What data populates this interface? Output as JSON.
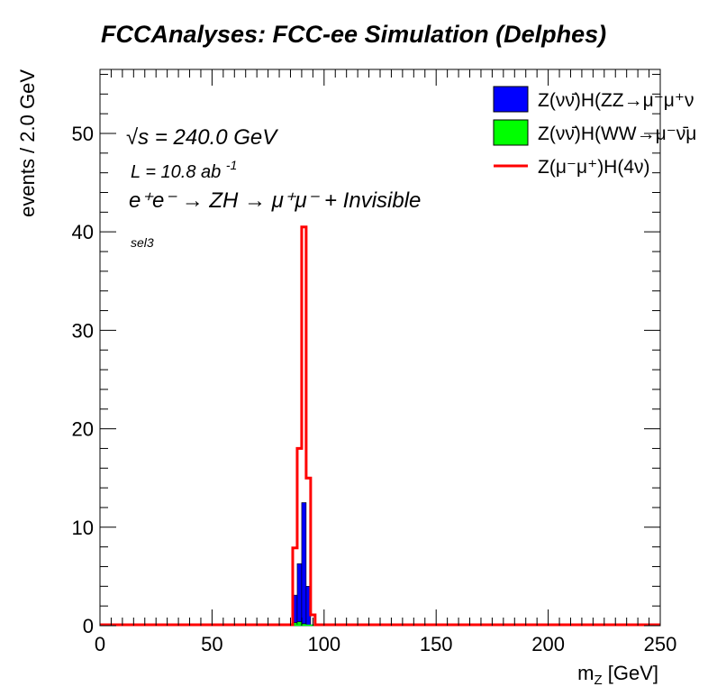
{
  "chart_data": {
    "type": "histogram",
    "title": "FCCAnalyses: FCC-ee Simulation (Delphes)",
    "xlabel": "m_Z [GeV]",
    "ylabel": "events / 2.0 GeV",
    "xlim": [
      0,
      250
    ],
    "ylim": [
      0,
      56.5
    ],
    "bin_width": 2.0,
    "x_ticks": [
      0,
      50,
      100,
      150,
      200,
      250
    ],
    "y_ticks": [
      0,
      10,
      20,
      30,
      40,
      50
    ],
    "annotations": {
      "energy": "√s = 240.0 GeV",
      "lumi": "L = 10.8 ab",
      "lumi_exp": "-1",
      "process": "e⁺e⁻ → ZH → μ⁺μ⁻ + Invisible",
      "selection": "sel3"
    },
    "series": [
      {
        "name": "Z(νν̄)H(ZZ→μ⁻μ⁺ν",
        "style": "filled",
        "color": "#0000ff",
        "bins": [
          {
            "x0": 86,
            "x1": 88,
            "y": 3.1
          },
          {
            "x0": 88,
            "x1": 90,
            "y": 6.3
          },
          {
            "x0": 90,
            "x1": 92,
            "y": 12.5
          },
          {
            "x0": 92,
            "x1": 94,
            "y": 4.0
          }
        ]
      },
      {
        "name": "Z(νν̄)H(WW→μ⁻ν̄μ",
        "style": "filled",
        "color": "#00ff00",
        "bins": [
          {
            "x0": 86,
            "x1": 88,
            "y": 0.3
          },
          {
            "x0": 88,
            "x1": 90,
            "y": 0.4
          },
          {
            "x0": 90,
            "x1": 92,
            "y": 0.2
          }
        ]
      },
      {
        "name": "Z(μ⁻μ⁺)H(4ν)",
        "style": "line",
        "color": "#ff0000",
        "bins": [
          {
            "x0": 86,
            "x1": 88,
            "y": 7.9
          },
          {
            "x0": 88,
            "x1": 90,
            "y": 18.0
          },
          {
            "x0": 90,
            "x1": 92,
            "y": 40.5
          },
          {
            "x0": 92,
            "x1": 94,
            "y": 15.0
          },
          {
            "x0": 94,
            "x1": 96,
            "y": 1.1
          }
        ]
      }
    ],
    "legend_position": "top-right"
  }
}
